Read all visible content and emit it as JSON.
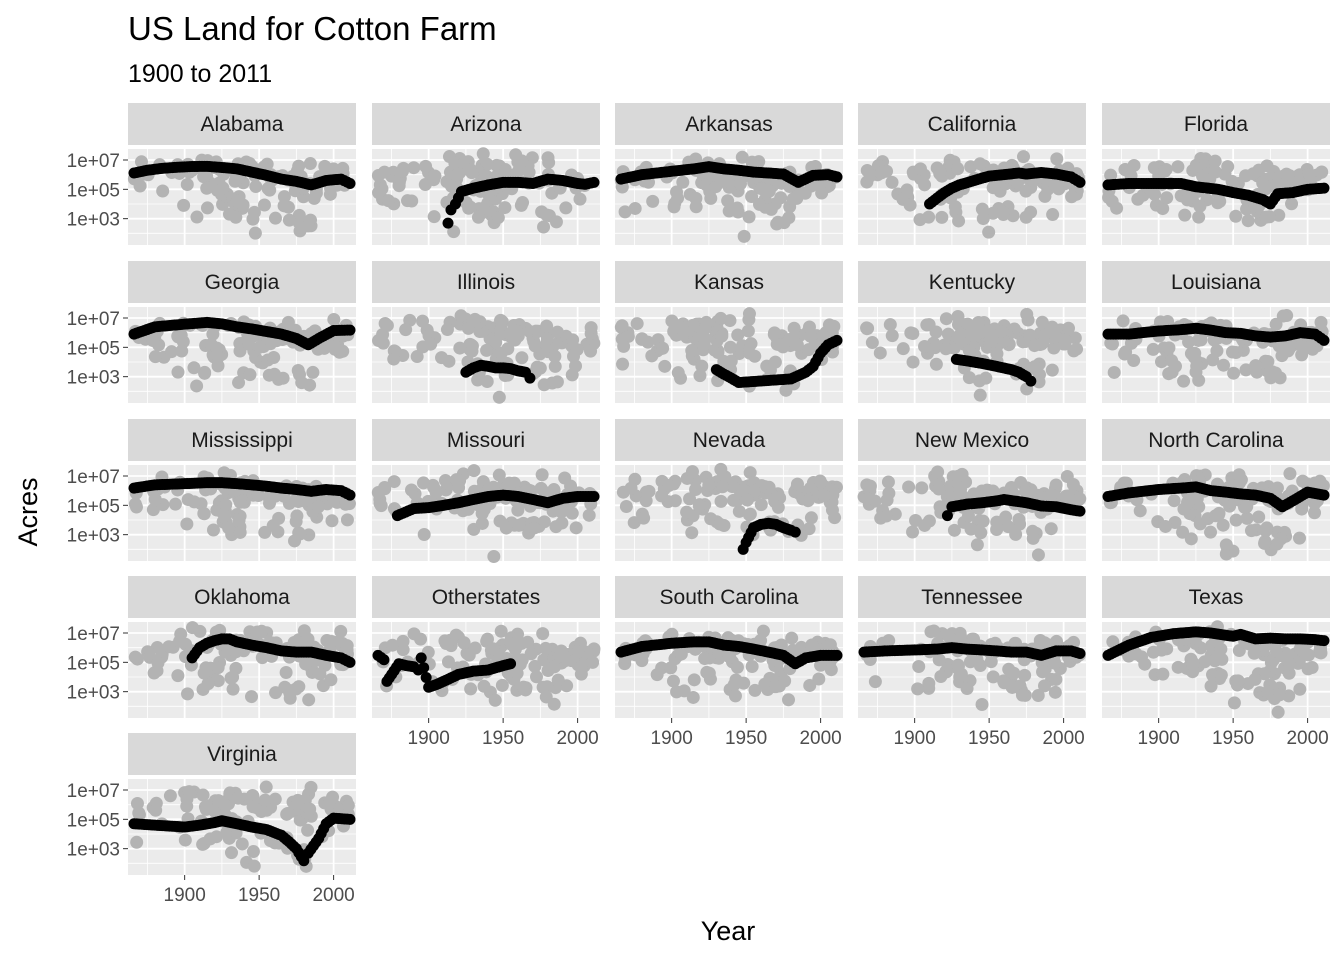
{
  "chart_data": {
    "type": "scatter",
    "title": "US Land for Cotton Farm",
    "subtitle": "1900 to 2011",
    "xlabel": "Year",
    "ylabel": "Acres",
    "y_scale": "log10",
    "xlim": [
      1866,
      2011
    ],
    "ylim": [
      30,
      30000000
    ],
    "x_ticks": [
      1900,
      1950,
      2000
    ],
    "x_tick_labels": [
      "1900",
      "1950",
      "2000"
    ],
    "y_ticks": [
      1000,
      100000,
      10000000
    ],
    "y_tick_labels": [
      "1e+03",
      "1e+05",
      "1e+07"
    ],
    "grid": true,
    "background_points_color": "#b3b3b3",
    "highlight_points_color": "#000000",
    "panel_background": "#ebebeb",
    "strip_background": "#d9d9d9",
    "facets": [
      {
        "name": "Alabama",
        "x": [
          1866,
          1875,
          1885,
          1895,
          1905,
          1915,
          1925,
          1935,
          1945,
          1955,
          1965,
          1975,
          1985,
          1995,
          2005,
          2011
        ],
        "y": [
          1300000,
          2000000,
          2700000,
          3200000,
          3600000,
          3700000,
          3100000,
          2500000,
          1500000,
          900000,
          500000,
          350000,
          200000,
          400000,
          500000,
          250000
        ]
      },
      {
        "name": "Arizona",
        "x": [
          1913,
          1915,
          1918,
          1922,
          1930,
          1940,
          1950,
          1960,
          1970,
          1980,
          1990,
          2000,
          2005,
          2011
        ],
        "y": [
          500,
          4000,
          10000,
          70000,
          120000,
          200000,
          300000,
          300000,
          250000,
          500000,
          400000,
          250000,
          220000,
          300000
        ]
      },
      {
        "name": "Arkansas",
        "x": [
          1866,
          1880,
          1900,
          1915,
          1925,
          1935,
          1945,
          1955,
          1965,
          1975,
          1985,
          1995,
          2005,
          2011
        ],
        "y": [
          500000,
          1000000,
          1700000,
          2500000,
          3500000,
          2500000,
          2000000,
          1500000,
          1300000,
          1100000,
          300000,
          900000,
          1000000,
          700000
        ]
      },
      {
        "name": "California",
        "x": [
          1910,
          1915,
          1920,
          1925,
          1930,
          1940,
          1950,
          1960,
          1970,
          1975,
          1985,
          1995,
          2005,
          2011
        ],
        "y": [
          10000,
          25000,
          60000,
          120000,
          200000,
          400000,
          800000,
          1000000,
          1300000,
          1100000,
          1400000,
          1100000,
          700000,
          300000
        ]
      },
      {
        "name": "Florida",
        "x": [
          1866,
          1880,
          1900,
          1915,
          1925,
          1940,
          1950,
          1960,
          1970,
          1975,
          1980,
          1990,
          2000,
          2011
        ],
        "y": [
          200000,
          250000,
          250000,
          250000,
          150000,
          100000,
          60000,
          40000,
          20000,
          10000,
          50000,
          60000,
          100000,
          120000
        ]
      },
      {
        "name": "Georgia",
        "x": [
          1866,
          1880,
          1900,
          1915,
          1925,
          1935,
          1945,
          1955,
          1965,
          1975,
          1983,
          1990,
          2000,
          2011
        ],
        "y": [
          800000,
          2500000,
          3800000,
          5000000,
          4000000,
          2500000,
          1800000,
          1200000,
          800000,
          400000,
          150000,
          400000,
          1400000,
          1500000
        ]
      },
      {
        "name": "Illinois",
        "x": [
          1925,
          1930,
          1935,
          1940,
          1945,
          1950,
          1955,
          1960,
          1965,
          1968
        ],
        "y": [
          2000,
          4000,
          6000,
          5000,
          4000,
          4000,
          3500,
          2500,
          2000,
          800
        ]
      },
      {
        "name": "Kansas",
        "x": [
          1930,
          1935,
          1940,
          1945,
          1980,
          1990,
          1995,
          2000,
          2005,
          2011
        ],
        "y": [
          3000,
          1500,
          800,
          400,
          700,
          2000,
          5000,
          40000,
          150000,
          300000
        ]
      },
      {
        "name": "Kentucky",
        "x": [
          1928,
          1935,
          1945,
          1955,
          1965,
          1970,
          1975,
          1978
        ],
        "y": [
          15000,
          12000,
          8000,
          5000,
          3000,
          2000,
          1000,
          500
        ]
      },
      {
        "name": "Louisiana",
        "x": [
          1866,
          1880,
          1900,
          1915,
          1925,
          1935,
          1945,
          1955,
          1965,
          1975,
          1985,
          1995,
          2005,
          2011
        ],
        "y": [
          800000,
          800000,
          1300000,
          1600000,
          2000000,
          1500000,
          1000000,
          900000,
          600000,
          500000,
          600000,
          1000000,
          800000,
          300000
        ]
      },
      {
        "name": "Mississippi",
        "x": [
          1866,
          1880,
          1900,
          1915,
          1925,
          1935,
          1945,
          1955,
          1965,
          1975,
          1985,
          1995,
          2005,
          2011
        ],
        "y": [
          1500000,
          2500000,
          3000000,
          3500000,
          3500000,
          3000000,
          2500000,
          2000000,
          1500000,
          1200000,
          900000,
          1200000,
          1000000,
          500000
        ]
      },
      {
        "name": "Missouri",
        "x": [
          1879,
          1890,
          1900,
          1910,
          1920,
          1930,
          1940,
          1950,
          1960,
          1970,
          1980,
          1990,
          2000,
          2011
        ],
        "y": [
          20000,
          60000,
          70000,
          100000,
          150000,
          250000,
          400000,
          500000,
          400000,
          250000,
          150000,
          300000,
          400000,
          400000
        ]
      },
      {
        "name": "Nevada",
        "x": [
          1948,
          1950,
          1955,
          1960,
          1965,
          1970,
          1975,
          1980,
          1983
        ],
        "y": [
          100,
          300,
          3000,
          5000,
          6000,
          5000,
          3000,
          2000,
          1500
        ]
      },
      {
        "name": "New Mexico",
        "x": [
          1922,
          1925,
          1935,
          1945,
          1955,
          1960,
          1975,
          1985,
          1995,
          2005,
          2011
        ],
        "y": [
          20000,
          80000,
          120000,
          150000,
          200000,
          250000,
          150000,
          90000,
          80000,
          50000,
          40000
        ]
      },
      {
        "name": "North Carolina",
        "x": [
          1866,
          1880,
          1900,
          1915,
          1925,
          1935,
          1945,
          1955,
          1965,
          1975,
          1983,
          1990,
          2000,
          2011
        ],
        "y": [
          400000,
          700000,
          1200000,
          1500000,
          1800000,
          1000000,
          800000,
          600000,
          500000,
          300000,
          80000,
          200000,
          800000,
          500000
        ]
      },
      {
        "name": "Oklahoma",
        "x": [
          1905,
          1910,
          1915,
          1920,
          1925,
          1930,
          1935,
          1945,
          1955,
          1965,
          1975,
          1985,
          1995,
          2005,
          2011
        ],
        "y": [
          200000,
          1000000,
          2000000,
          3000000,
          4000000,
          4000000,
          2500000,
          1500000,
          1000000,
          600000,
          500000,
          500000,
          300000,
          200000,
          100000
        ]
      },
      {
        "name": "Otherstates",
        "x": [
          1866,
          1870,
          1872,
          1880,
          1885,
          1890,
          1893,
          1895,
          1900,
          1905,
          1910,
          1920,
          1930,
          1940,
          1950,
          1955
        ],
        "y": [
          300000,
          150000,
          5000,
          80000,
          60000,
          50000,
          30000,
          200000,
          2000,
          3000,
          5000,
          15000,
          25000,
          30000,
          60000,
          80000
        ]
      },
      {
        "name": "South Carolina",
        "x": [
          1866,
          1880,
          1900,
          1915,
          1925,
          1935,
          1945,
          1955,
          1965,
          1975,
          1983,
          1990,
          2000,
          2011
        ],
        "y": [
          500000,
          1200000,
          2000000,
          2500000,
          2500000,
          1500000,
          1200000,
          800000,
          500000,
          300000,
          80000,
          200000,
          300000,
          300000
        ]
      },
      {
        "name": "Tennessee",
        "x": [
          1866,
          1880,
          1900,
          1915,
          1925,
          1935,
          1945,
          1955,
          1965,
          1975,
          1985,
          1995,
          2005,
          2011
        ],
        "y": [
          500000,
          600000,
          700000,
          800000,
          1000000,
          800000,
          700000,
          600000,
          500000,
          500000,
          300000,
          600000,
          600000,
          400000
        ]
      },
      {
        "name": "Texas",
        "x": [
          1866,
          1880,
          1895,
          1910,
          1925,
          1935,
          1945,
          1950,
          1955,
          1965,
          1975,
          1985,
          1995,
          2005,
          2011
        ],
        "y": [
          300000,
          1500000,
          5000000,
          9000000,
          12000000,
          10000000,
          7000000,
          6000000,
          8000000,
          4000000,
          4500000,
          4000000,
          4000000,
          3500000,
          3000000
        ]
      },
      {
        "name": "Virginia",
        "x": [
          1866,
          1880,
          1900,
          1910,
          1920,
          1925,
          1935,
          1945,
          1955,
          1965,
          1970,
          1975,
          1980,
          1983,
          1990,
          1995,
          2000,
          2011
        ],
        "y": [
          50000,
          40000,
          30000,
          40000,
          60000,
          80000,
          50000,
          30000,
          20000,
          8000,
          3000,
          1000,
          150,
          500,
          5000,
          50000,
          120000,
          100000
        ]
      }
    ]
  }
}
